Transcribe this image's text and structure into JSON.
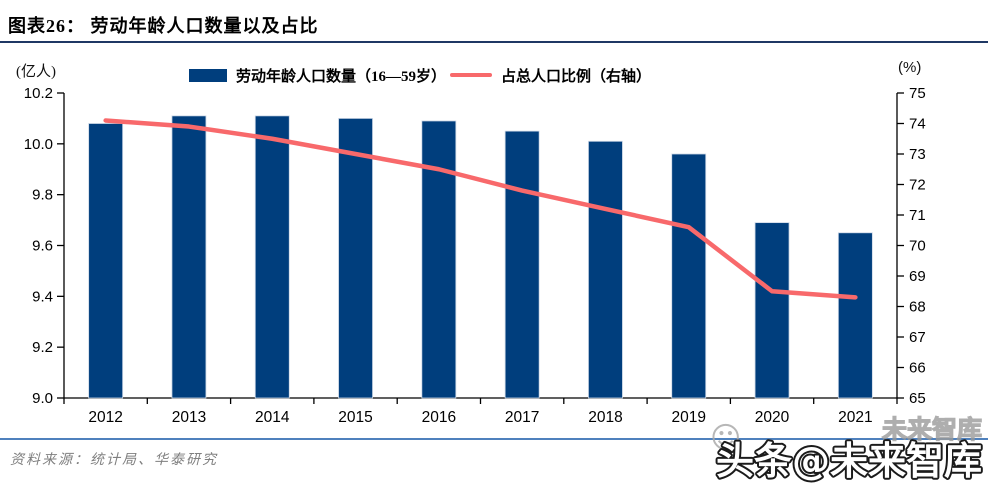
{
  "header": {
    "title": "图表26：  劳动年龄人口数量以及占比"
  },
  "footer": {
    "source": "资料来源：统计局、华泰研究"
  },
  "watermark": {
    "main": "头条@未来智库",
    "ghost": "未来智库",
    "smiley": "☺"
  },
  "chart_data": {
    "type": "bar+line combo",
    "categories": [
      "2012",
      "2013",
      "2014",
      "2015",
      "2016",
      "2017",
      "2018",
      "2019",
      "2020",
      "2021"
    ],
    "series": [
      {
        "name": "劳动年龄人口数量（16—59岁）",
        "type": "bar",
        "axis": "left",
        "unit": "亿人",
        "values": [
          10.08,
          10.11,
          10.11,
          10.1,
          10.09,
          10.05,
          10.01,
          9.96,
          9.69,
          9.65
        ]
      },
      {
        "name": "占总人口比例（右轴）",
        "type": "line",
        "axis": "right",
        "unit": "%",
        "values": [
          74.1,
          73.9,
          73.5,
          73.0,
          72.5,
          71.8,
          71.2,
          70.6,
          68.5,
          68.3
        ]
      }
    ],
    "left_axis": {
      "unit_label": "(亿人)",
      "min": 9.0,
      "max": 10.2,
      "step": 0.2,
      "ticks": [
        "9.0",
        "9.2",
        "9.4",
        "9.6",
        "9.8",
        "10.0",
        "10.2"
      ]
    },
    "right_axis": {
      "unit_label": "(%)",
      "min": 65,
      "max": 75,
      "step": 1,
      "ticks": [
        "65",
        "66",
        "67",
        "68",
        "69",
        "70",
        "71",
        "72",
        "73",
        "74",
        "75"
      ]
    },
    "legend_position": "top",
    "grid": false,
    "colors": {
      "bar": "#003e7d",
      "line": "#f8696b",
      "title_rule": "#1f3864",
      "footer_rule": "#4f81bd",
      "source_text": "#7f7f7f",
      "axis": "#000000"
    }
  }
}
